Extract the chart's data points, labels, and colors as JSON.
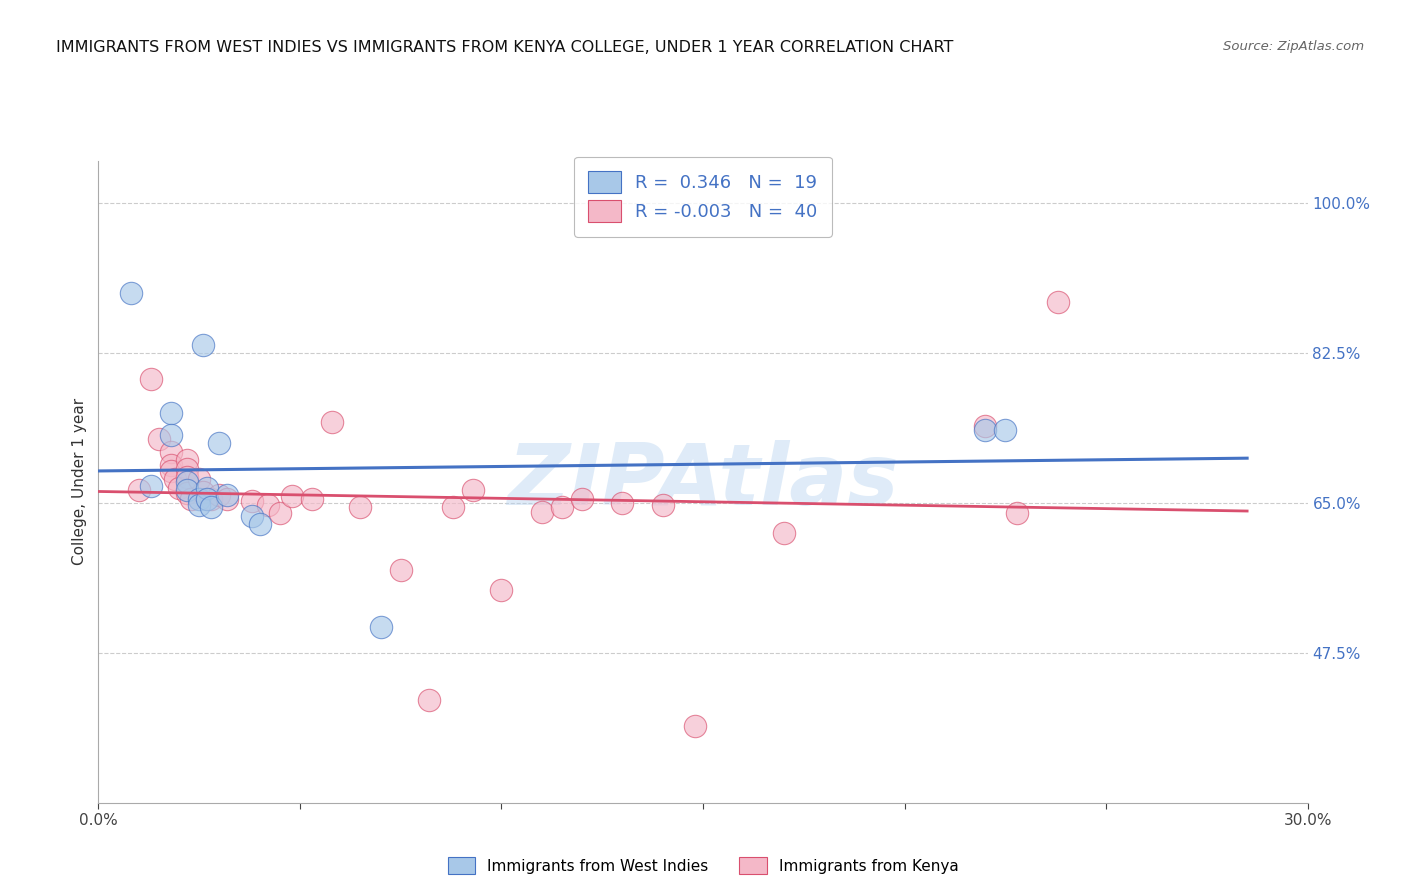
{
  "title": "IMMIGRANTS FROM WEST INDIES VS IMMIGRANTS FROM KENYA COLLEGE, UNDER 1 YEAR CORRELATION CHART",
  "source": "Source: ZipAtlas.com",
  "ylabel": "College, Under 1 year",
  "xlim": [
    0.0,
    0.3
  ],
  "ylim": [
    0.3,
    1.05
  ],
  "xtick_vals": [
    0.0,
    0.05,
    0.1,
    0.15,
    0.2,
    0.25,
    0.3
  ],
  "ytick_vals": [
    0.475,
    0.65,
    0.825,
    1.0
  ],
  "ytick_labels": [
    "47.5%",
    "65.0%",
    "82.5%",
    "100.0%"
  ],
  "r_west_indies": 0.346,
  "n_west_indies": 19,
  "r_kenya": -0.003,
  "n_kenya": 40,
  "color_west_indies": "#a8c8e8",
  "color_kenya": "#f4b8c8",
  "line_color_west_indies": "#4472c4",
  "line_color_kenya": "#d94f6e",
  "west_indies_x": [
    0.008,
    0.013,
    0.018,
    0.018,
    0.022,
    0.022,
    0.025,
    0.025,
    0.027,
    0.027,
    0.028,
    0.03,
    0.032,
    0.038,
    0.04,
    0.07,
    0.22,
    0.225,
    0.026
  ],
  "west_indies_y": [
    0.895,
    0.67,
    0.755,
    0.73,
    0.675,
    0.665,
    0.655,
    0.648,
    0.668,
    0.655,
    0.645,
    0.72,
    0.66,
    0.635,
    0.625,
    0.505,
    0.735,
    0.735,
    0.835
  ],
  "kenya_x": [
    0.01,
    0.013,
    0.015,
    0.018,
    0.018,
    0.018,
    0.019,
    0.02,
    0.022,
    0.022,
    0.022,
    0.022,
    0.023,
    0.025,
    0.026,
    0.028,
    0.03,
    0.032,
    0.038,
    0.042,
    0.045,
    0.048,
    0.053,
    0.058,
    0.065,
    0.075,
    0.082,
    0.088,
    0.093,
    0.1,
    0.11,
    0.115,
    0.12,
    0.13,
    0.14,
    0.148,
    0.17,
    0.22,
    0.228,
    0.238
  ],
  "kenya_y": [
    0.665,
    0.795,
    0.725,
    0.71,
    0.695,
    0.688,
    0.678,
    0.668,
    0.7,
    0.69,
    0.68,
    0.662,
    0.655,
    0.678,
    0.663,
    0.655,
    0.66,
    0.655,
    0.652,
    0.648,
    0.638,
    0.658,
    0.655,
    0.745,
    0.645,
    0.572,
    0.42,
    0.645,
    0.665,
    0.548,
    0.64,
    0.645,
    0.655,
    0.65,
    0.648,
    0.39,
    0.615,
    0.74,
    0.638,
    0.885
  ]
}
